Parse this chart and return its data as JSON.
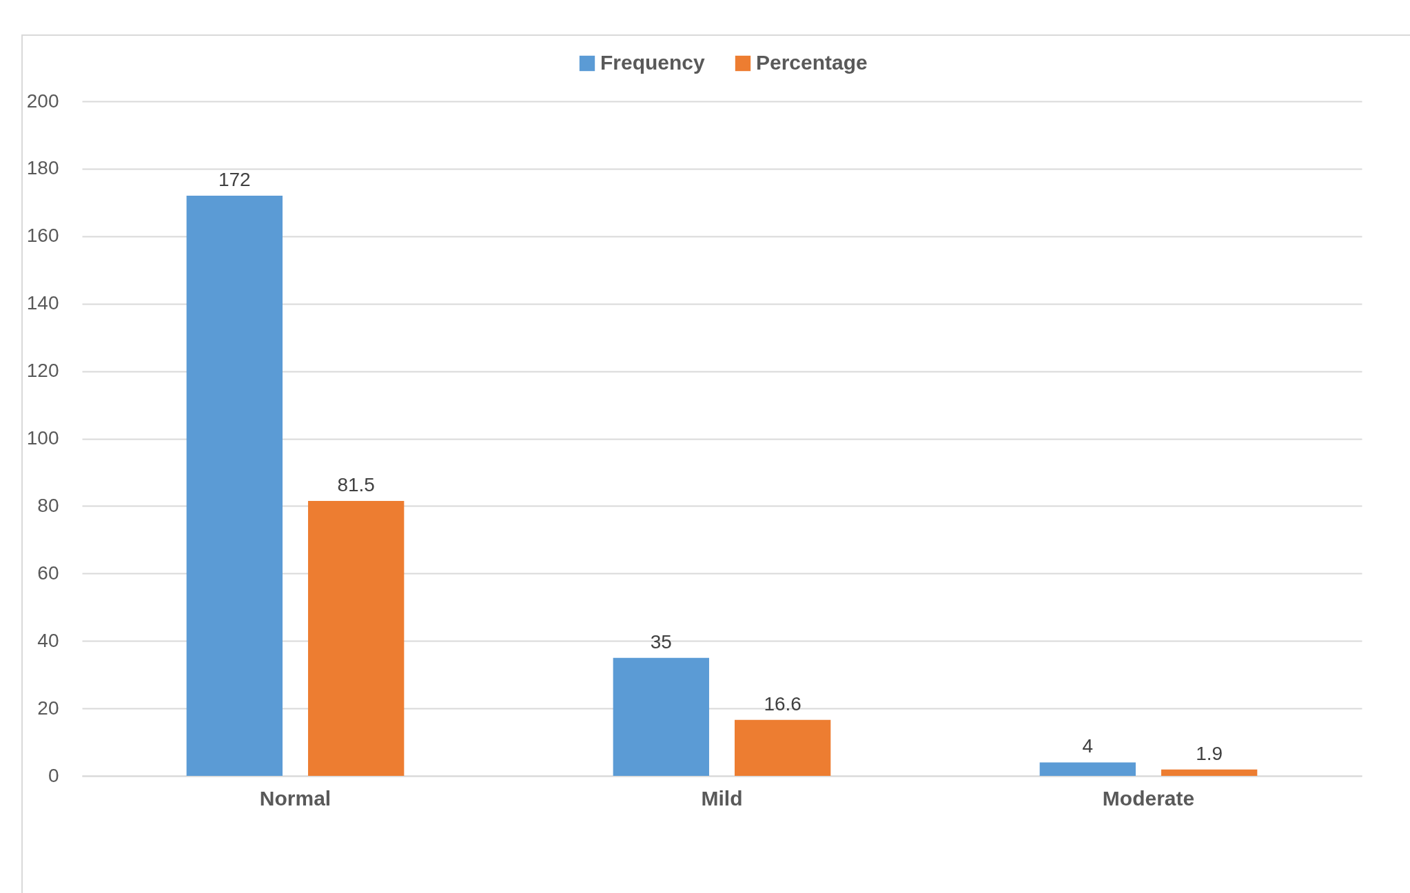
{
  "chart_data": {
    "type": "bar",
    "categories": [
      "Normal",
      "Mild",
      "Moderate"
    ],
    "series": [
      {
        "name": "Frequency",
        "color": "#5b9bd5",
        "values": [
          172,
          35,
          4
        ]
      },
      {
        "name": "Percentage",
        "color": "#ed7d31",
        "values": [
          81.5,
          16.6,
          1.9
        ]
      }
    ],
    "ylim": [
      0,
      200
    ],
    "yticks": [
      0,
      20,
      40,
      60,
      80,
      100,
      120,
      140,
      160,
      180,
      200
    ],
    "grid": "y",
    "legend": "top",
    "data_labels": true
  }
}
